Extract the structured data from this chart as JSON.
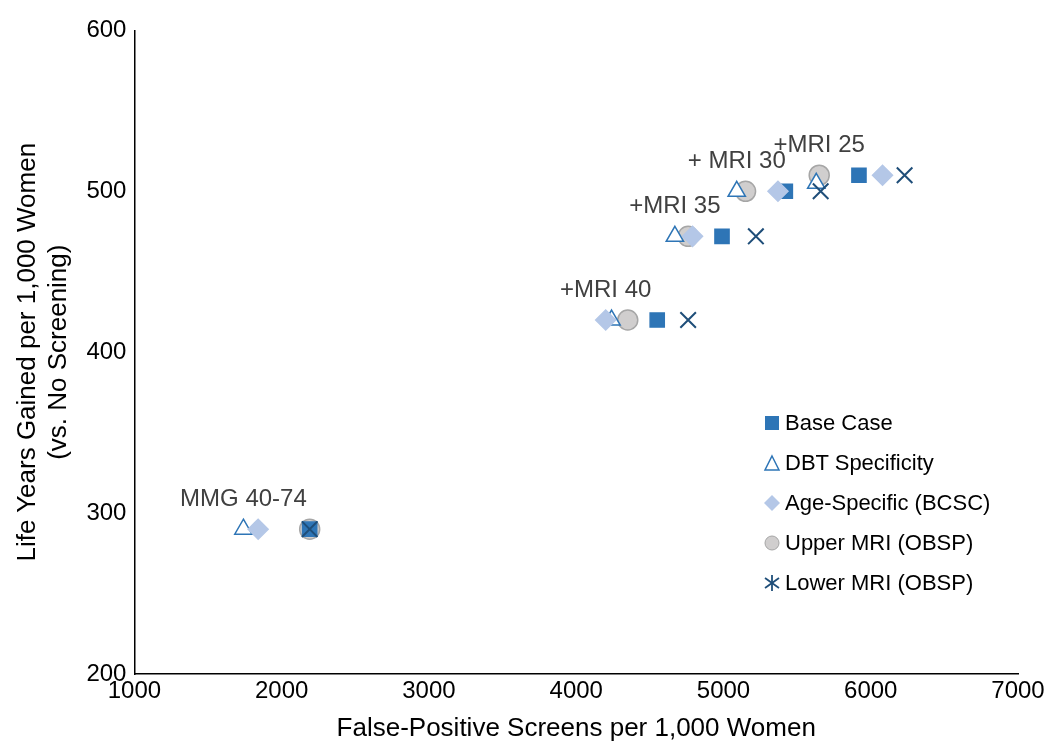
{
  "chart_data": {
    "type": "scatter",
    "xlabel": "False-Positive Screens per 1,000 Women",
    "ylabel": "Life Years Gained per 1,000 Women\n(vs. No Screening)",
    "xlim": [
      1000,
      7000
    ],
    "xticks": [
      1000,
      2000,
      3000,
      4000,
      5000,
      6000,
      7000
    ],
    "ylim": [
      200,
      600
    ],
    "yticks": [
      200,
      300,
      400,
      500,
      600
    ],
    "grid": false,
    "legend": "bottom right",
    "series": [
      {
        "name": "Base Case",
        "color": "#2e75b6",
        "marker": "square",
        "x": [
          2190,
          4550,
          4990,
          5420,
          5920
        ],
        "values": [
          290,
          420,
          472,
          500,
          510
        ]
      },
      {
        "name": "DBT Specificity",
        "color": "#2e75b6",
        "marker": "triangle",
        "x": [
          1740,
          4240,
          4670,
          5090,
          5630
        ],
        "values": [
          290,
          420,
          472,
          500,
          505
        ]
      },
      {
        "name": "Age-Specific (BCSC)",
        "color": "#b4c7e7",
        "marker": "diamond",
        "x": [
          1840,
          4200,
          4790,
          5370,
          6080
        ],
        "values": [
          290,
          420,
          472,
          500,
          510
        ]
      },
      {
        "name": "Upper MRI (OBSP)",
        "color": "#d0cece",
        "marker": "circle",
        "x": [
          2190,
          4350,
          4760,
          5150,
          5650
        ],
        "values": [
          290,
          420,
          472,
          500,
          510
        ]
      },
      {
        "name": "Lower MRI (OBSP)",
        "color": "#1f4e79",
        "marker": "cross",
        "x": [
          2190,
          4760,
          5220,
          5660,
          6230
        ],
        "values": [
          290,
          420,
          472,
          500,
          510
        ]
      }
    ],
    "annotations": [
      {
        "text": "MMG 40-74",
        "x": 1740,
        "y": 290
      },
      {
        "text": "+MRI 40",
        "x": 4200,
        "y": 420
      },
      {
        "text": "+MRI 35",
        "x": 4670,
        "y": 472
      },
      {
        "text": "+ MRI 30",
        "x": 5090,
        "y": 500
      },
      {
        "text": "+MRI 25",
        "x": 5650,
        "y": 510
      }
    ]
  }
}
